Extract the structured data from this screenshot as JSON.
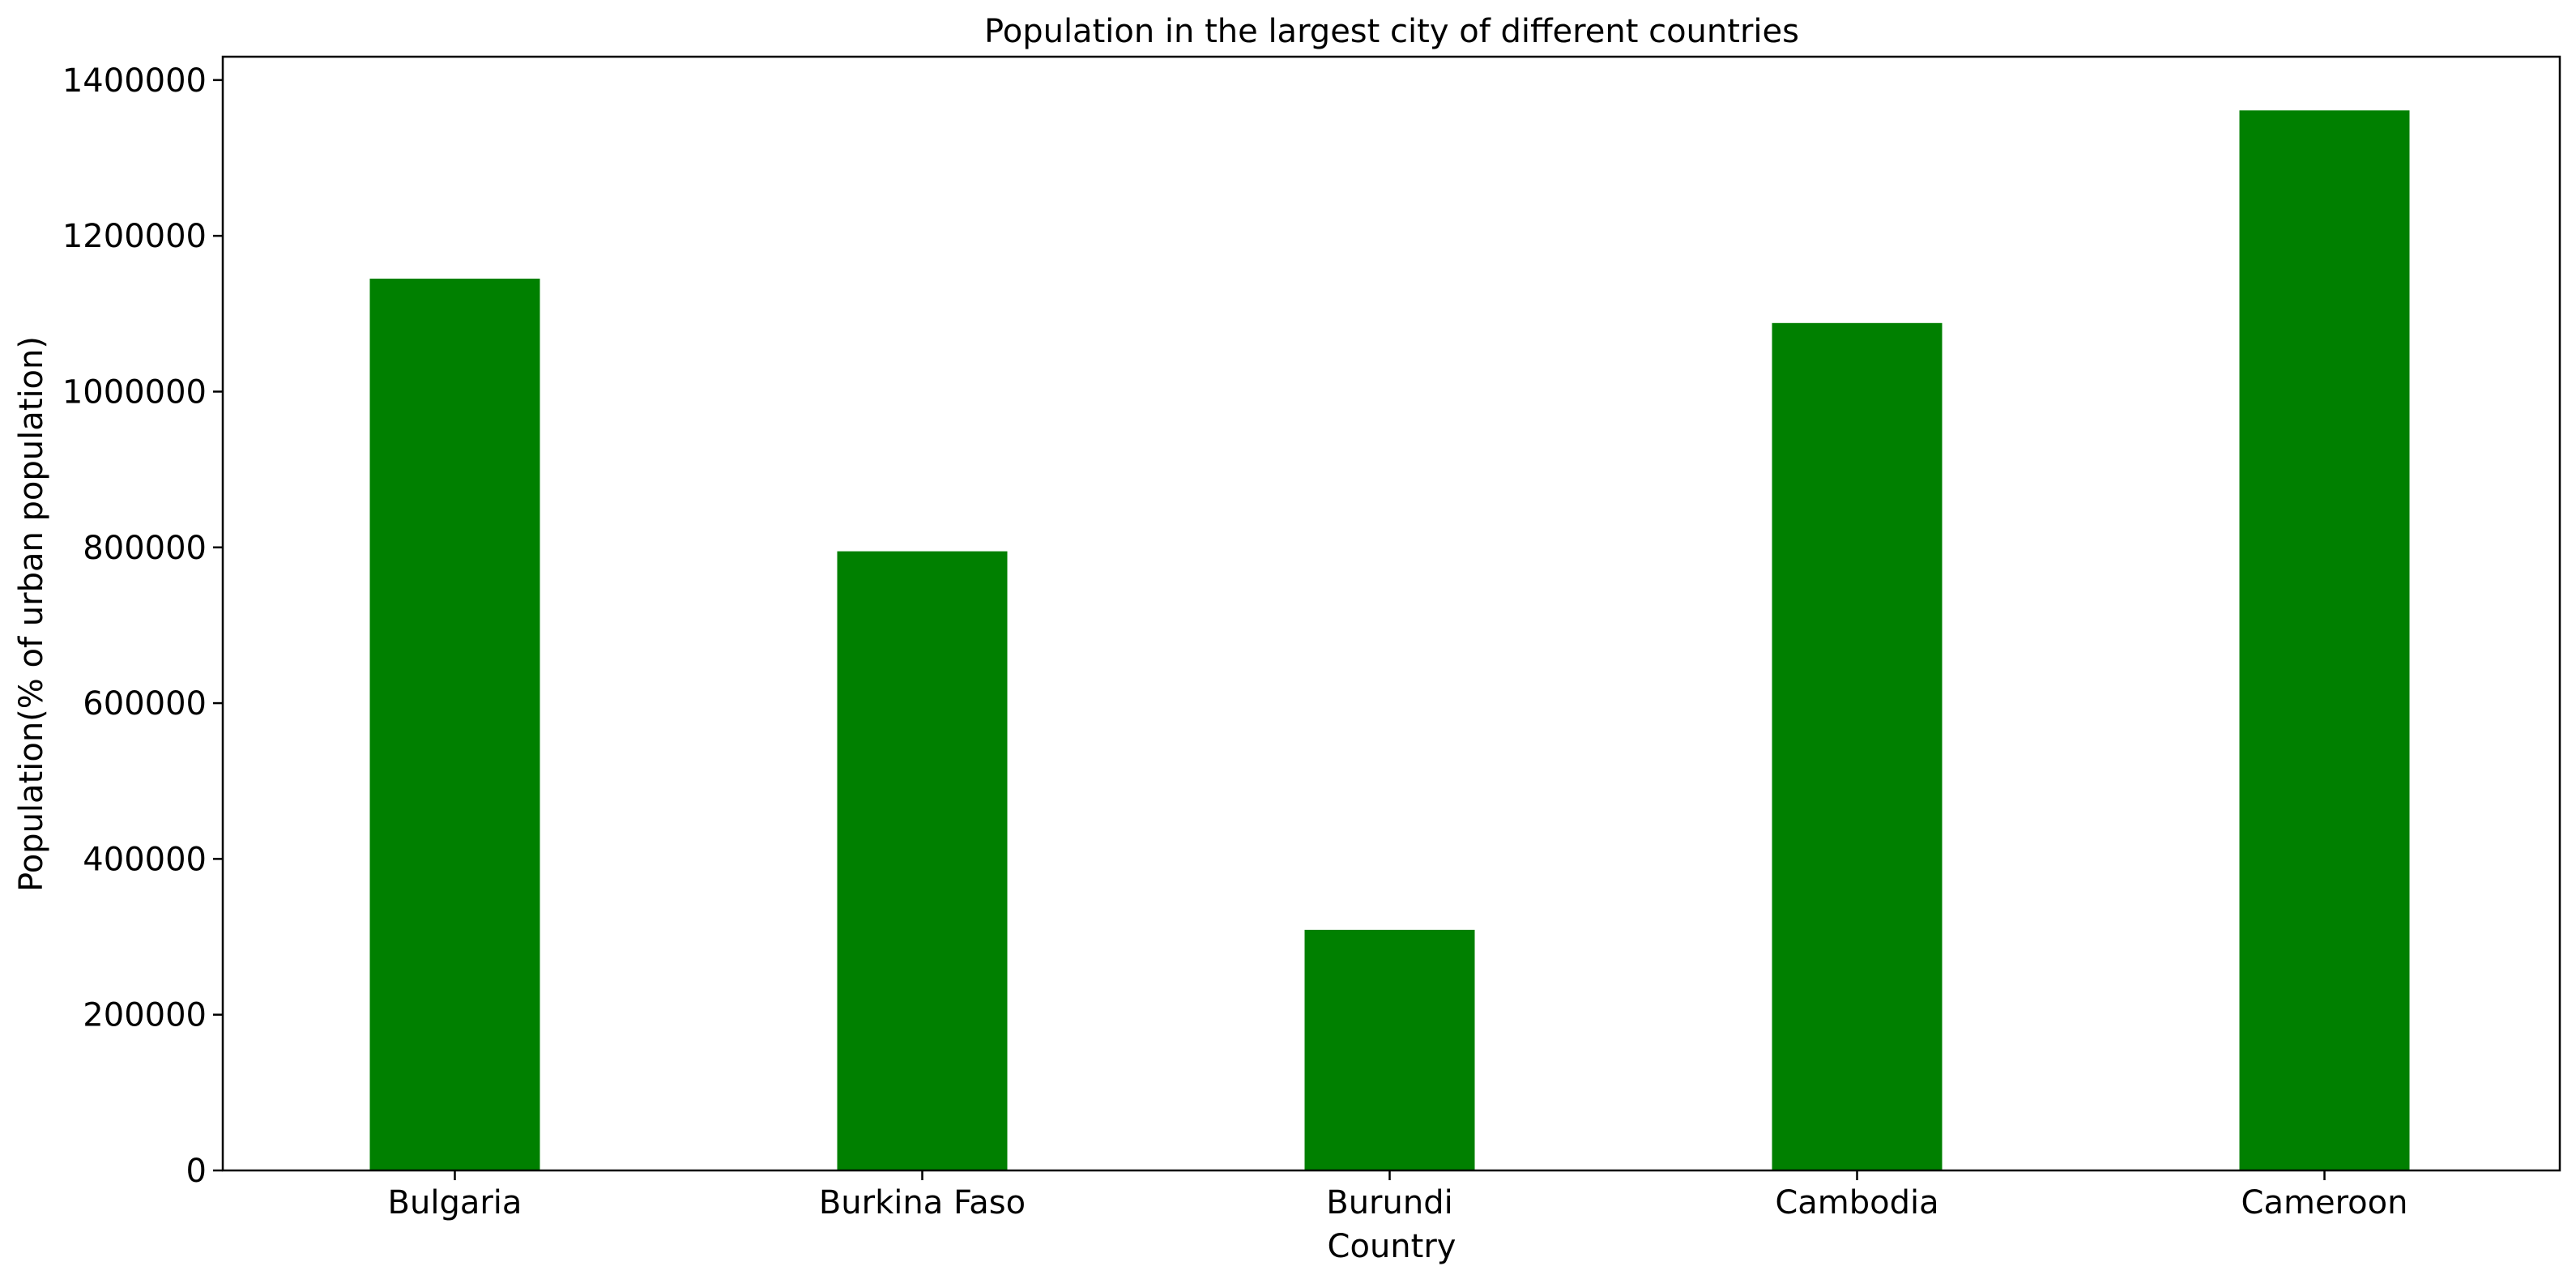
{
  "chart_data": {
    "type": "bar",
    "title": "Population in the largest city of different countries",
    "xlabel": "Country",
    "ylabel": "Population(% of urban population)",
    "categories": [
      "Bulgaria",
      "Burkina Faso",
      "Burundi",
      "Cambodia",
      "Cameroon"
    ],
    "values": [
      1145000,
      795000,
      309000,
      1088000,
      1361000
    ],
    "ylim": [
      0,
      1430000
    ],
    "yticks": [
      0,
      200000,
      400000,
      600000,
      800000,
      1000000,
      1200000,
      1400000
    ],
    "ytick_labels": [
      "0",
      "200000",
      "400000",
      "600000",
      "800000",
      "1000000",
      "1200000",
      "1400000"
    ],
    "bar_color": "#008000",
    "grid": false,
    "legend": "none"
  }
}
